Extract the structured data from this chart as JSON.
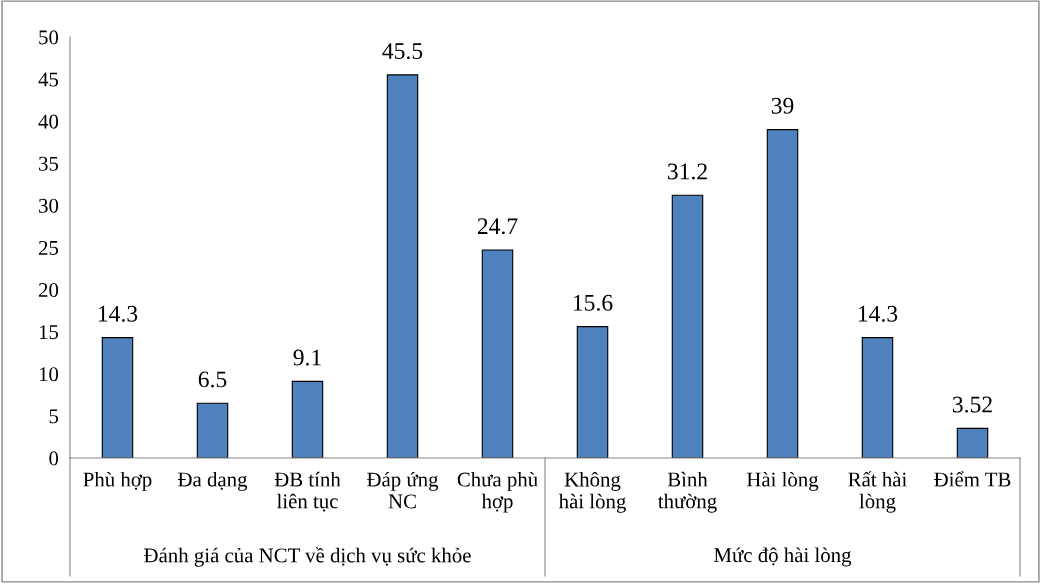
{
  "chart_data": {
    "type": "bar",
    "categories": [
      "Phù hợp",
      "Đa dạng",
      "ĐB tính\nliên tục",
      "Đáp ứng\nNC",
      "Chưa phù\nhợp",
      "Không\nhài lòng",
      "Bình\nthường",
      "Hài lòng",
      "Rất hài\nlòng",
      "Điểm TB"
    ],
    "values": [
      14.3,
      6.5,
      9.1,
      45.5,
      24.7,
      15.6,
      31.2,
      39,
      14.3,
      3.52
    ],
    "value_labels": [
      "14.3",
      "6.5",
      "9.1",
      "45.5",
      "24.7",
      "15.6",
      "31.2",
      "39",
      "14.3",
      "3.52"
    ],
    "color": "#4f81bd",
    "ylim": [
      0,
      50
    ],
    "yticks": [
      0,
      5,
      10,
      15,
      20,
      25,
      30,
      35,
      40,
      45,
      50
    ],
    "grid": false,
    "annotations": [
      "Đánh giá của NCT về dịch vụ sức khỏe",
      "Mức độ hài lòng"
    ]
  }
}
